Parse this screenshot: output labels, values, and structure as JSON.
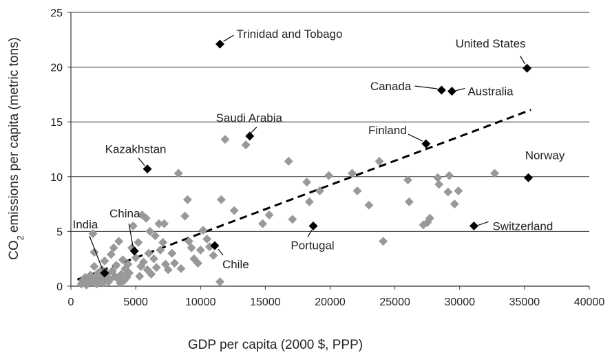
{
  "chart_data": {
    "type": "scatter",
    "xlabel": "GDP per capita (2000 $, PPP)",
    "ylabel": "CO2 emissions per capita (metric tons)",
    "ylabel_parts": {
      "before": "CO",
      "sub": "2",
      "after": "emissions per capita (metric tons)"
    },
    "xlim": [
      0,
      40000
    ],
    "ylim": [
      0,
      25
    ],
    "x_ticks": [
      0,
      5000,
      10000,
      15000,
      20000,
      25000,
      30000,
      35000,
      40000
    ],
    "y_ticks": [
      0,
      5,
      10,
      15,
      20,
      25
    ],
    "x_tick_labels": [
      "0",
      "5000",
      "10000",
      "15000",
      "20000",
      "25000",
      "30000",
      "35000",
      "40000"
    ],
    "y_tick_labels": [
      "0",
      "5",
      "10",
      "15",
      "20",
      "25"
    ],
    "grid": "horizontal",
    "colors": {
      "labeled": "#000000",
      "other": "#999999",
      "trend": "#000000",
      "grid": "#333333"
    },
    "trend_line": {
      "style": "dashed",
      "x": [
        500,
        35500
      ],
      "y": [
        0.6,
        16.1
      ]
    },
    "labeled_points": [
      {
        "name": "Trinidad and Tobago",
        "x": 11500,
        "y": 22.1
      },
      {
        "name": "United States",
        "x": 35200,
        "y": 19.9
      },
      {
        "name": "Canada",
        "x": 28600,
        "y": 17.9
      },
      {
        "name": "Australia",
        "x": 29400,
        "y": 17.8
      },
      {
        "name": "Saudi Arabia",
        "x": 13800,
        "y": 13.7
      },
      {
        "name": "Finland",
        "x": 27400,
        "y": 13.0
      },
      {
        "name": "Kazakhstan",
        "x": 5900,
        "y": 10.7
      },
      {
        "name": "Norway",
        "x": 35300,
        "y": 9.9
      },
      {
        "name": "China",
        "x": 4900,
        "y": 3.2
      },
      {
        "name": "India",
        "x": 2600,
        "y": 1.2
      },
      {
        "name": "Chile",
        "x": 11100,
        "y": 3.7
      },
      {
        "name": "Portugal",
        "x": 18700,
        "y": 5.5
      },
      {
        "name": "Switzerland",
        "x": 31100,
        "y": 5.5
      }
    ],
    "other_points": [
      [
        800,
        0.2
      ],
      [
        900,
        0.5
      ],
      [
        1000,
        0.3
      ],
      [
        1100,
        0.8
      ],
      [
        1200,
        0.1
      ],
      [
        1300,
        0.6
      ],
      [
        1400,
        0.3
      ],
      [
        1500,
        1.0
      ],
      [
        1600,
        0.4
      ],
      [
        1700,
        4.8
      ],
      [
        1800,
        3.1
      ],
      [
        1800,
        1.8
      ],
      [
        1900,
        0.7
      ],
      [
        2000,
        0.2
      ],
      [
        2100,
        1.2
      ],
      [
        2200,
        0.5
      ],
      [
        2300,
        0.9
      ],
      [
        2400,
        1.5
      ],
      [
        2500,
        0.3
      ],
      [
        2600,
        2.3
      ],
      [
        2700,
        0.8
      ],
      [
        2800,
        1.1
      ],
      [
        2900,
        0.4
      ],
      [
        3000,
        0.6
      ],
      [
        3100,
        2.9
      ],
      [
        3200,
        1.4
      ],
      [
        3300,
        3.5
      ],
      [
        3400,
        0.9
      ],
      [
        3500,
        1.9
      ],
      [
        3600,
        0.7
      ],
      [
        3700,
        4.1
      ],
      [
        3800,
        0.3
      ],
      [
        3900,
        1.1
      ],
      [
        4000,
        2.4
      ],
      [
        4100,
        0.5
      ],
      [
        4200,
        1.6
      ],
      [
        4300,
        0.8
      ],
      [
        4400,
        2.0
      ],
      [
        4500,
        1.2
      ],
      [
        4700,
        3.5
      ],
      [
        4800,
        5.5
      ],
      [
        5000,
        2.6
      ],
      [
        5200,
        4.0
      ],
      [
        5300,
        0.9
      ],
      [
        5400,
        1.8
      ],
      [
        5500,
        6.5
      ],
      [
        5600,
        2.2
      ],
      [
        5800,
        6.2
      ],
      [
        5900,
        1.5
      ],
      [
        6000,
        3.0
      ],
      [
        6100,
        5.0
      ],
      [
        6200,
        1.1
      ],
      [
        6400,
        2.5
      ],
      [
        6500,
        4.6
      ],
      [
        6600,
        1.7
      ],
      [
        6800,
        5.7
      ],
      [
        6900,
        3.3
      ],
      [
        7100,
        4.0
      ],
      [
        7200,
        5.7
      ],
      [
        7300,
        2.0
      ],
      [
        7500,
        1.5
      ],
      [
        7800,
        3.0
      ],
      [
        8000,
        2.1
      ],
      [
        8300,
        10.3
      ],
      [
        8500,
        1.6
      ],
      [
        8800,
        6.4
      ],
      [
        9000,
        7.9
      ],
      [
        9100,
        4.1
      ],
      [
        9300,
        3.5
      ],
      [
        9500,
        2.5
      ],
      [
        9800,
        2.1
      ],
      [
        10000,
        3.3
      ],
      [
        10200,
        5.1
      ],
      [
        10500,
        4.3
      ],
      [
        10700,
        3.6
      ],
      [
        11000,
        2.8
      ],
      [
        11500,
        0.4
      ],
      [
        11600,
        7.9
      ],
      [
        11900,
        13.4
      ],
      [
        12600,
        6.9
      ],
      [
        13500,
        12.9
      ],
      [
        14800,
        5.7
      ],
      [
        15300,
        6.5
      ],
      [
        16800,
        11.4
      ],
      [
        17100,
        6.1
      ],
      [
        18200,
        9.5
      ],
      [
        18400,
        7.7
      ],
      [
        19200,
        8.7
      ],
      [
        19900,
        10.1
      ],
      [
        21700,
        10.3
      ],
      [
        22100,
        8.7
      ],
      [
        23000,
        7.4
      ],
      [
        23800,
        11.4
      ],
      [
        24100,
        4.1
      ],
      [
        26000,
        9.7
      ],
      [
        26100,
        7.7
      ],
      [
        27200,
        5.6
      ],
      [
        27500,
        5.8
      ],
      [
        27700,
        6.2
      ],
      [
        28300,
        9.9
      ],
      [
        28400,
        9.3
      ],
      [
        29100,
        8.6
      ],
      [
        29200,
        10.1
      ],
      [
        29600,
        7.5
      ],
      [
        29900,
        8.7
      ],
      [
        32700,
        10.3
      ]
    ]
  }
}
